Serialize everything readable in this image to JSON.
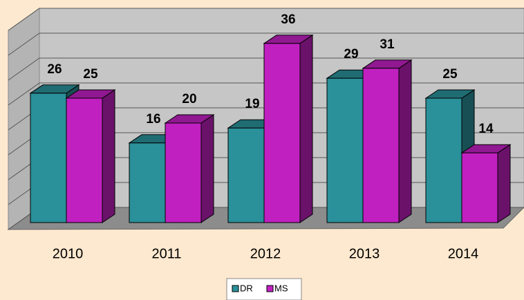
{
  "chart_data": {
    "type": "bar3d",
    "categories": [
      "2010",
      "2011",
      "2012",
      "2013",
      "2014"
    ],
    "series": [
      {
        "name": "DR",
        "color": "#2a9099",
        "values": [
          26,
          16,
          19,
          29,
          25
        ]
      },
      {
        "name": "MS",
        "color": "#c020c0",
        "values": [
          25,
          20,
          36,
          31,
          14
        ]
      }
    ],
    "ylim": [
      0,
      40
    ],
    "yticks": [
      0,
      5,
      10,
      15,
      20,
      25,
      30,
      35,
      40
    ],
    "grid": true
  }
}
